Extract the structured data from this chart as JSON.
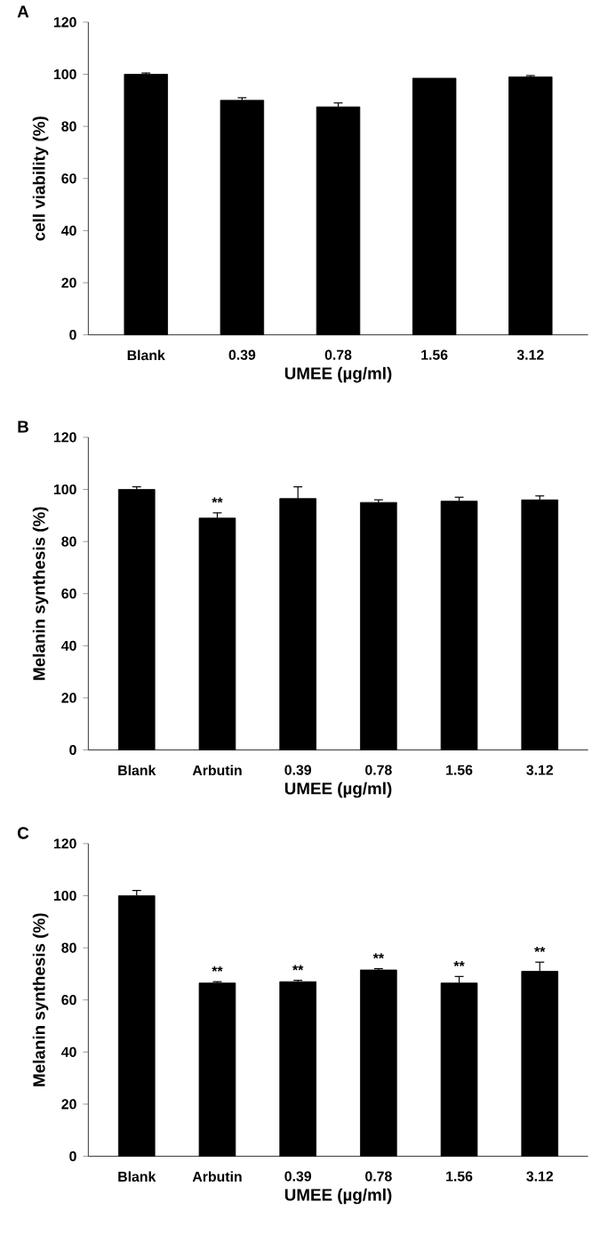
{
  "chart_data": [
    {
      "type": "bar",
      "title": "A",
      "xlabel": "UMEE (µg/ml)",
      "ylabel": "cell viability (%)",
      "categories": [
        "Blank",
        "0.39",
        "0.78",
        "1.56",
        "3.12"
      ],
      "values": [
        100,
        90,
        87.5,
        98.5,
        99
      ],
      "color": "#000000",
      "errors": [
        [
          100,
          100.5
        ],
        [
          90,
          91
        ],
        [
          87.5,
          89
        ],
        null,
        [
          99,
          99.5
        ]
      ],
      "ylim": [
        0,
        120
      ],
      "yticks": [
        0,
        20,
        40,
        60,
        80,
        100,
        120
      ]
    },
    {
      "type": "bar",
      "title": "B",
      "xlabel": "UMEE (µg/ml)",
      "ylabel": "Melanin synthesis (%)",
      "categories": [
        "Blank",
        "Arbutin",
        "0.39",
        "0.78",
        "1.56",
        "3.12"
      ],
      "values": [
        100,
        89,
        96.5,
        95,
        95.5,
        96
      ],
      "color": "#000000",
      "errors": [
        [
          100,
          101
        ],
        [
          89,
          91
        ],
        [
          96.5,
          101
        ],
        [
          95,
          96
        ],
        [
          95.5,
          97
        ],
        [
          96,
          97.5
        ]
      ],
      "ylim": [
        0,
        120
      ],
      "yticks": [
        0,
        20,
        40,
        60,
        80,
        100,
        120
      ],
      "annotations": [
        {
          "text": "**",
          "x": "Arbutin",
          "y": 91
        }
      ]
    },
    {
      "type": "bar",
      "title": "C",
      "xlabel": "UMEE (µg/ml)",
      "ylabel": "Melanin synthesis (%)",
      "categories": [
        "Blank",
        "Arbutin",
        "0.39",
        "0.78",
        "1.56",
        "3.12"
      ],
      "values": [
        100,
        66.5,
        67,
        71.5,
        66.5,
        71
      ],
      "color": "#000000",
      "errors": [
        [
          100,
          102
        ],
        [
          66.5,
          67
        ],
        [
          67,
          67.5
        ],
        [
          71.5,
          72
        ],
        [
          66.5,
          69
        ],
        [
          71,
          74.5
        ]
      ],
      "ylim": [
        0,
        120
      ],
      "yticks": [
        0,
        20,
        40,
        60,
        80,
        100,
        120
      ],
      "annotations": [
        {
          "text": "**",
          "x": "Arbutin",
          "y": 67
        },
        {
          "text": "**",
          "x": "0.39",
          "y": 67.5
        },
        {
          "text": "**",
          "x": "0.78",
          "y": 72
        },
        {
          "text": "**",
          "x": "1.56",
          "y": 69
        },
        {
          "text": "**",
          "x": "3.12",
          "y": 74.5
        }
      ]
    }
  ]
}
